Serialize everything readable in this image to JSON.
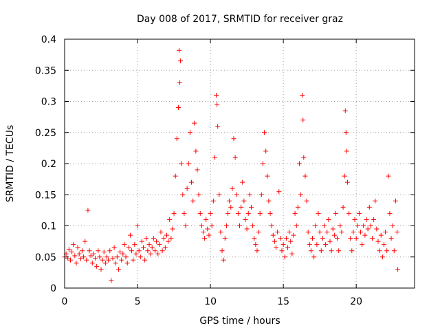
{
  "chart_data": {
    "type": "scatter",
    "title": "Day 008 of 2017, SRMTID for receiver graz",
    "xlabel": "GPS time / hours",
    "ylabel": "SRMTID / TECUs",
    "xlim": [
      0,
      24
    ],
    "ylim": [
      0,
      0.4
    ],
    "xticks": [
      0,
      5,
      10,
      15,
      20
    ],
    "xtick_labels": [
      "0",
      "5",
      "10",
      "15",
      "20"
    ],
    "yticks": [
      0,
      0.05,
      0.1,
      0.15,
      0.2,
      0.25,
      0.3,
      0.35,
      0.4
    ],
    "ytick_labels": [
      "0",
      "0.05",
      "0.1",
      "0.15",
      "0.2",
      "0.25",
      "0.3",
      "0.35",
      "0.4"
    ],
    "grid": true,
    "marker": "+",
    "color": "#ff0000",
    "series": [
      {
        "name": "SRMTID",
        "points": [
          [
            0.0,
            0.05
          ],
          [
            0.1,
            0.055
          ],
          [
            0.2,
            0.048
          ],
          [
            0.3,
            0.062
          ],
          [
            0.4,
            0.045
          ],
          [
            0.5,
            0.058
          ],
          [
            0.6,
            0.07
          ],
          [
            0.7,
            0.052
          ],
          [
            0.8,
            0.04
          ],
          [
            0.9,
            0.065
          ],
          [
            1.0,
            0.055
          ],
          [
            1.1,
            0.047
          ],
          [
            1.2,
            0.06
          ],
          [
            1.3,
            0.05
          ],
          [
            1.4,
            0.075
          ],
          [
            1.5,
            0.045
          ],
          [
            1.6,
            0.125
          ],
          [
            1.7,
            0.06
          ],
          [
            1.8,
            0.052
          ],
          [
            1.9,
            0.04
          ],
          [
            2.0,
            0.055
          ],
          [
            2.1,
            0.048
          ],
          [
            2.2,
            0.035
          ],
          [
            2.3,
            0.06
          ],
          [
            2.4,
            0.05
          ],
          [
            2.5,
            0.03
          ],
          [
            2.6,
            0.045
          ],
          [
            2.7,
            0.058
          ],
          [
            2.8,
            0.04
          ],
          [
            2.9,
            0.05
          ],
          [
            3.0,
            0.045
          ],
          [
            3.1,
            0.06
          ],
          [
            3.2,
            0.012
          ],
          [
            3.3,
            0.048
          ],
          [
            3.4,
            0.065
          ],
          [
            3.5,
            0.04
          ],
          [
            3.6,
            0.05
          ],
          [
            3.7,
            0.03
          ],
          [
            3.8,
            0.058
          ],
          [
            3.9,
            0.045
          ],
          [
            4.0,
            0.055
          ],
          [
            4.1,
            0.07
          ],
          [
            4.2,
            0.05
          ],
          [
            4.3,
            0.04
          ],
          [
            4.4,
            0.065
          ],
          [
            4.5,
            0.085
          ],
          [
            4.6,
            0.06
          ],
          [
            4.7,
            0.045
          ],
          [
            4.8,
            0.07
          ],
          [
            4.9,
            0.055
          ],
          [
            5.0,
            0.1
          ],
          [
            5.1,
            0.06
          ],
          [
            5.2,
            0.05
          ],
          [
            5.3,
            0.075
          ],
          [
            5.4,
            0.065
          ],
          [
            5.5,
            0.045
          ],
          [
            5.6,
            0.08
          ],
          [
            5.7,
            0.06
          ],
          [
            5.8,
            0.07
          ],
          [
            5.9,
            0.055
          ],
          [
            6.0,
            0.065
          ],
          [
            6.1,
            0.08
          ],
          [
            6.2,
            0.06
          ],
          [
            6.3,
            0.075
          ],
          [
            6.4,
            0.055
          ],
          [
            6.5,
            0.07
          ],
          [
            6.6,
            0.09
          ],
          [
            6.7,
            0.06
          ],
          [
            6.8,
            0.08
          ],
          [
            6.9,
            0.065
          ],
          [
            7.0,
            0.085
          ],
          [
            7.1,
            0.075
          ],
          [
            7.2,
            0.11
          ],
          [
            7.3,
            0.08
          ],
          [
            7.4,
            0.095
          ],
          [
            7.5,
            0.12
          ],
          [
            7.6,
            0.18
          ],
          [
            7.7,
            0.24
          ],
          [
            7.8,
            0.29
          ],
          [
            7.85,
            0.382
          ],
          [
            7.9,
            0.33
          ],
          [
            7.95,
            0.365
          ],
          [
            8.0,
            0.2
          ],
          [
            8.1,
            0.15
          ],
          [
            8.2,
            0.12
          ],
          [
            8.3,
            0.1
          ],
          [
            8.4,
            0.16
          ],
          [
            8.5,
            0.2
          ],
          [
            8.6,
            0.25
          ],
          [
            8.7,
            0.17
          ],
          [
            8.8,
            0.14
          ],
          [
            8.9,
            0.265
          ],
          [
            9.0,
            0.22
          ],
          [
            9.1,
            0.19
          ],
          [
            9.2,
            0.15
          ],
          [
            9.3,
            0.12
          ],
          [
            9.4,
            0.1
          ],
          [
            9.5,
            0.09
          ],
          [
            9.6,
            0.08
          ],
          [
            9.7,
            0.11
          ],
          [
            9.8,
            0.095
          ],
          [
            9.9,
            0.085
          ],
          [
            10.0,
            0.12
          ],
          [
            10.1,
            0.1
          ],
          [
            10.2,
            0.14
          ],
          [
            10.3,
            0.21
          ],
          [
            10.4,
            0.31
          ],
          [
            10.45,
            0.295
          ],
          [
            10.5,
            0.26
          ],
          [
            10.6,
            0.15
          ],
          [
            10.7,
            0.09
          ],
          [
            10.8,
            0.06
          ],
          [
            10.9,
            0.045
          ],
          [
            11.0,
            0.08
          ],
          [
            11.1,
            0.1
          ],
          [
            11.2,
            0.12
          ],
          [
            11.3,
            0.14
          ],
          [
            11.4,
            0.13
          ],
          [
            11.5,
            0.16
          ],
          [
            11.6,
            0.24
          ],
          [
            11.7,
            0.21
          ],
          [
            11.8,
            0.15
          ],
          [
            11.9,
            0.12
          ],
          [
            12.0,
            0.1
          ],
          [
            12.1,
            0.13
          ],
          [
            12.2,
            0.17
          ],
          [
            12.3,
            0.14
          ],
          [
            12.4,
            0.11
          ],
          [
            12.5,
            0.095
          ],
          [
            12.6,
            0.12
          ],
          [
            12.7,
            0.15
          ],
          [
            12.8,
            0.13
          ],
          [
            12.9,
            0.1
          ],
          [
            13.0,
            0.08
          ],
          [
            13.1,
            0.07
          ],
          [
            13.2,
            0.06
          ],
          [
            13.3,
            0.09
          ],
          [
            13.4,
            0.12
          ],
          [
            13.5,
            0.15
          ],
          [
            13.6,
            0.2
          ],
          [
            13.7,
            0.25
          ],
          [
            13.8,
            0.22
          ],
          [
            13.9,
            0.18
          ],
          [
            14.0,
            0.14
          ],
          [
            14.1,
            0.12
          ],
          [
            14.2,
            0.1
          ],
          [
            14.3,
            0.085
          ],
          [
            14.4,
            0.075
          ],
          [
            14.5,
            0.065
          ],
          [
            14.6,
            0.09
          ],
          [
            14.7,
            0.155
          ],
          [
            14.8,
            0.08
          ],
          [
            14.9,
            0.06
          ],
          [
            15.0,
            0.07
          ],
          [
            15.1,
            0.05
          ],
          [
            15.2,
            0.08
          ],
          [
            15.3,
            0.065
          ],
          [
            15.4,
            0.09
          ],
          [
            15.5,
            0.075
          ],
          [
            15.6,
            0.055
          ],
          [
            15.7,
            0.085
          ],
          [
            15.8,
            0.12
          ],
          [
            15.9,
            0.1
          ],
          [
            16.0,
            0.13
          ],
          [
            16.1,
            0.2
          ],
          [
            16.2,
            0.15
          ],
          [
            16.3,
            0.31
          ],
          [
            16.35,
            0.27
          ],
          [
            16.4,
            0.21
          ],
          [
            16.5,
            0.18
          ],
          [
            16.6,
            0.14
          ],
          [
            16.7,
            0.09
          ],
          [
            16.8,
            0.07
          ],
          [
            16.9,
            0.06
          ],
          [
            17.0,
            0.08
          ],
          [
            17.1,
            0.05
          ],
          [
            17.2,
            0.1
          ],
          [
            17.3,
            0.07
          ],
          [
            17.4,
            0.12
          ],
          [
            17.5,
            0.09
          ],
          [
            17.6,
            0.06
          ],
          [
            17.7,
            0.08
          ],
          [
            17.8,
            0.1
          ],
          [
            17.9,
            0.07
          ],
          [
            18.0,
            0.09
          ],
          [
            18.1,
            0.11
          ],
          [
            18.2,
            0.075
          ],
          [
            18.3,
            0.06
          ],
          [
            18.4,
            0.095
          ],
          [
            18.5,
            0.085
          ],
          [
            18.6,
            0.12
          ],
          [
            18.7,
            0.08
          ],
          [
            18.8,
            0.06
          ],
          [
            18.9,
            0.1
          ],
          [
            19.0,
            0.09
          ],
          [
            19.1,
            0.13
          ],
          [
            19.2,
            0.18
          ],
          [
            19.25,
            0.285
          ],
          [
            19.3,
            0.25
          ],
          [
            19.35,
            0.22
          ],
          [
            19.4,
            0.17
          ],
          [
            19.5,
            0.12
          ],
          [
            19.6,
            0.08
          ],
          [
            19.7,
            0.06
          ],
          [
            19.8,
            0.09
          ],
          [
            19.9,
            0.11
          ],
          [
            20.0,
            0.08
          ],
          [
            20.1,
            0.1
          ],
          [
            20.2,
            0.12
          ],
          [
            20.3,
            0.09
          ],
          [
            20.4,
            0.07
          ],
          [
            20.5,
            0.1
          ],
          [
            20.6,
            0.085
          ],
          [
            20.7,
            0.11
          ],
          [
            20.8,
            0.095
          ],
          [
            20.9,
            0.13
          ],
          [
            21.0,
            0.1
          ],
          [
            21.1,
            0.08
          ],
          [
            21.2,
            0.11
          ],
          [
            21.3,
            0.14
          ],
          [
            21.4,
            0.095
          ],
          [
            21.5,
            0.075
          ],
          [
            21.6,
            0.06
          ],
          [
            21.7,
            0.085
          ],
          [
            21.8,
            0.05
          ],
          [
            21.9,
            0.07
          ],
          [
            22.0,
            0.09
          ],
          [
            22.1,
            0.06
          ],
          [
            22.2,
            0.18
          ],
          [
            22.3,
            0.12
          ],
          [
            22.4,
            0.08
          ],
          [
            22.5,
            0.1
          ],
          [
            22.6,
            0.06
          ],
          [
            22.7,
            0.14
          ],
          [
            22.8,
            0.09
          ],
          [
            22.85,
            0.03
          ]
        ]
      }
    ]
  }
}
